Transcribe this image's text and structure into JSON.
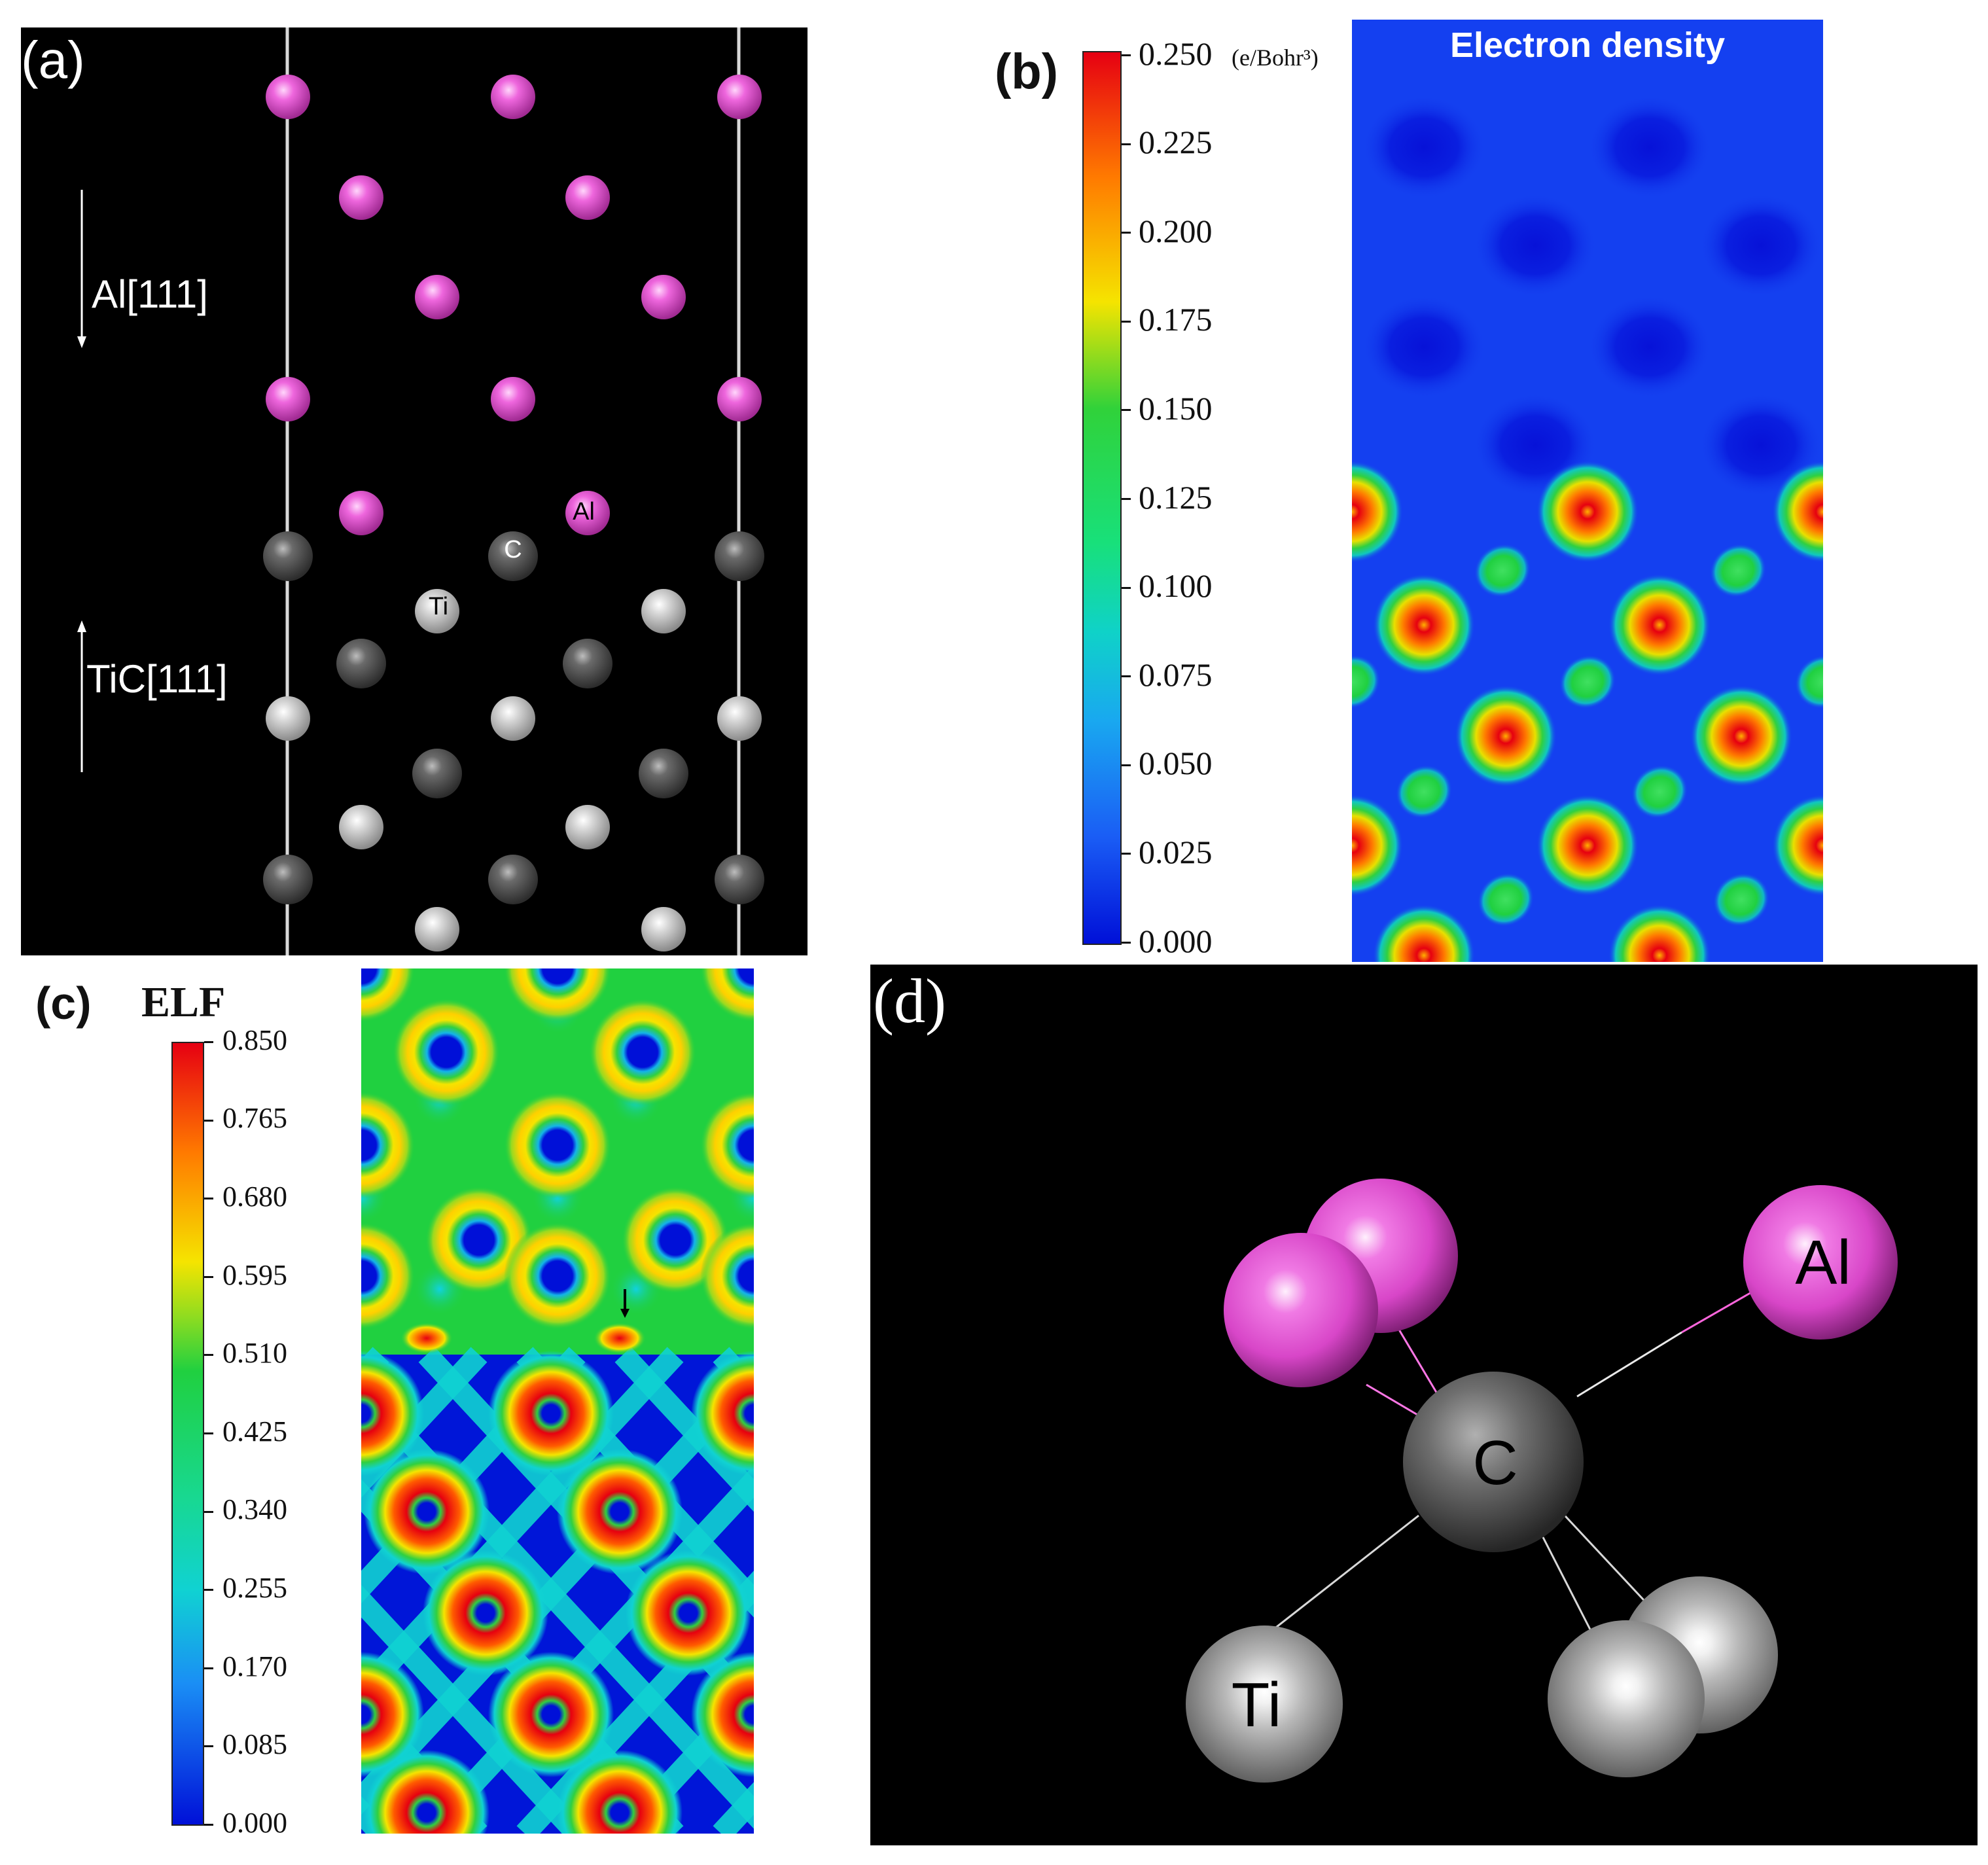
{
  "panel_a": {
    "label": "(a)",
    "axis_top": "Al[111]",
    "axis_bottom": "TiC[111]",
    "atom_labels": {
      "al": "Al",
      "c": "C",
      "ti": "Ti"
    }
  },
  "panel_b": {
    "label": "(b)",
    "title": "Electron density",
    "unit": "(e/Bohr³)",
    "colorbar_ticks": [
      "0.250",
      "0.225",
      "0.200",
      "0.175",
      "0.150",
      "0.125",
      "0.100",
      "0.075",
      "0.050",
      "0.025",
      "0.000"
    ]
  },
  "panel_c": {
    "label": "(c)",
    "title": "ELF",
    "colorbar_ticks": [
      "0.850",
      "0.765",
      "0.680",
      "0.595",
      "0.510",
      "0.425",
      "0.340",
      "0.255",
      "0.170",
      "0.085",
      "0.000"
    ]
  },
  "panel_d": {
    "label": "(d)",
    "atom_labels": {
      "al": "Al",
      "c": "C",
      "ti": "Ti"
    }
  },
  "colors": {
    "al_atom": "#e64fd6",
    "c_atom": "#5a5a5a",
    "ti_atom": "#cfcfcf",
    "jet_red": "#e8001a",
    "jet_blue": "#0016d8"
  }
}
